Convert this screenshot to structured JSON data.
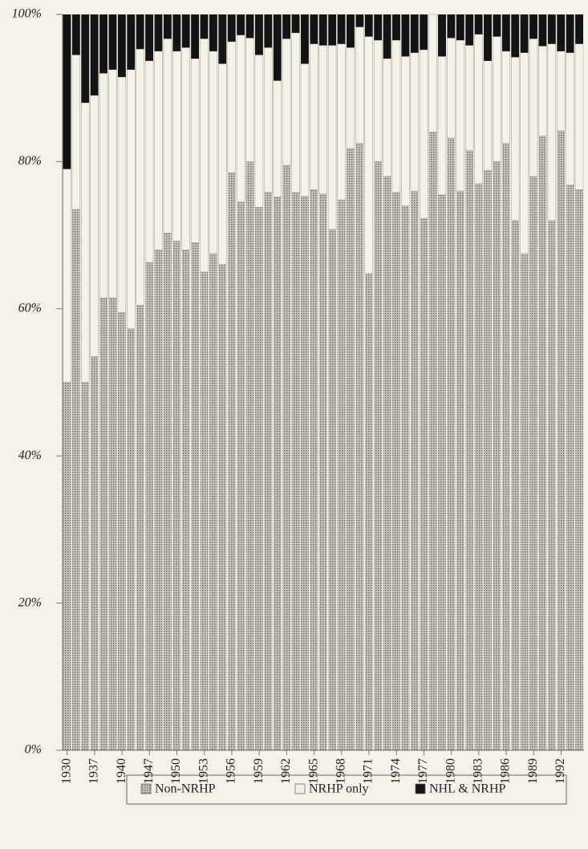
{
  "chart_data": {
    "type": "stacked-bar",
    "categories": [
      "1930",
      null,
      null,
      "1937",
      null,
      null,
      "1940",
      null,
      null,
      "1947",
      null,
      null,
      "1950",
      null,
      null,
      "1953",
      null,
      null,
      "1956",
      null,
      null,
      "1959",
      null,
      null,
      "1962",
      null,
      null,
      "1965",
      null,
      null,
      "1968",
      null,
      null,
      "1971",
      null,
      null,
      "1974",
      null,
      null,
      "1977",
      null,
      null,
      "1980",
      null,
      null,
      "1983",
      null,
      null,
      "1986",
      null,
      null,
      "1989",
      null,
      null,
      "1992",
      null,
      null
    ],
    "series": [
      {
        "name": "Non-NRHP",
        "color": "#a9a79f",
        "values": [
          50,
          73.5,
          50,
          53.5,
          61.5,
          61.5,
          59.5,
          57.3,
          60.5,
          66.3,
          68,
          70.3,
          69.2,
          68,
          69,
          65,
          67.5,
          66,
          78.5,
          74.5,
          80,
          73.8,
          75.8,
          75.2,
          79.5,
          75.8,
          75.3,
          76.2,
          75.6,
          70.8,
          74.8,
          81.8,
          82.5,
          64.8,
          80,
          78,
          75.8,
          74,
          76,
          72.3,
          84,
          75.5,
          83.2,
          76,
          81.5,
          77,
          78.8,
          80,
          82.5,
          72,
          67.5,
          78,
          83.5,
          72,
          84.2,
          76.8,
          76.2
        ]
      },
      {
        "name": "NRHP only",
        "color": "#f4f1e6",
        "values": [
          29,
          21,
          38,
          35.5,
          30.5,
          31,
          32,
          35.2,
          34.8,
          27.4,
          27,
          26.4,
          25.8,
          27.5,
          25,
          31.7,
          27.5,
          27.3,
          17.8,
          22.7,
          16.8,
          20.7,
          19.7,
          15.8,
          17.2,
          21.7,
          18,
          19.8,
          20.2,
          25,
          21.2,
          13.7,
          15.8,
          32.2,
          16.5,
          16,
          20.7,
          20.3,
          18.8,
          22.9,
          16,
          18.8,
          13.6,
          20.5,
          14.3,
          20.3,
          14.9,
          17,
          12.5,
          22.2,
          27.3,
          18.7,
          12.2,
          24,
          10.8,
          18,
          19.8
        ]
      },
      {
        "name": "NHL  & NRHP",
        "color": "#141414",
        "values": [
          21,
          5.5,
          12,
          11,
          8,
          7.5,
          8.5,
          7.5,
          4.7,
          6.3,
          5,
          3.3,
          5,
          4.5,
          6,
          3.3,
          5,
          6.7,
          3.7,
          2.8,
          3.2,
          5.5,
          4.5,
          9,
          3.3,
          2.5,
          6.7,
          4,
          4.2,
          4.2,
          4,
          4.5,
          1.7,
          3,
          3.5,
          6,
          3.5,
          5.7,
          5.2,
          4.8,
          0,
          5.7,
          3.2,
          3.5,
          4.2,
          2.7,
          6.3,
          3,
          5,
          5.8,
          5.2,
          3.3,
          4.3,
          4,
          5,
          5.2,
          4
        ]
      }
    ],
    "ylim": [
      0,
      100
    ],
    "yticks": [
      {
        "value": 0,
        "label": "0%"
      },
      {
        "value": 20,
        "label": "20%"
      },
      {
        "value": 40,
        "label": "40%"
      },
      {
        "value": 60,
        "label": "60%"
      },
      {
        "value": 80,
        "label": "80%"
      },
      {
        "value": 100,
        "label": "100%"
      }
    ]
  }
}
